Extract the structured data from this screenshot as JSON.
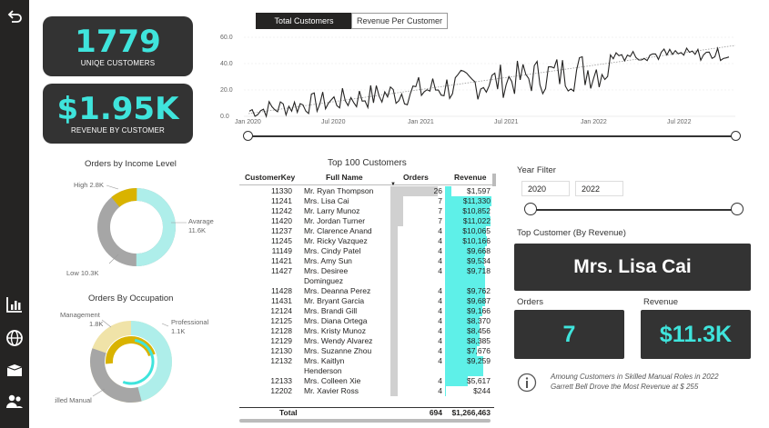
{
  "sidebar": {
    "icons": [
      "back-arrow-icon",
      "bar-chart-icon",
      "globe-icon",
      "box-icon",
      "people-icon"
    ]
  },
  "kpi_customers": {
    "value": "1779",
    "label": "UNIQE CUSTOMERS"
  },
  "kpi_revenue": {
    "value": "$1.95K",
    "label": "REVENUE BY CUSTOMER"
  },
  "tabs": {
    "total": "Total Customers",
    "rev": "Revenue Per Customer"
  },
  "line_chart": {
    "y_ticks": [
      "0.0",
      "20.0",
      "40.0",
      "60.0"
    ],
    "x_ticks": [
      "Jan 2020",
      "Jul 2020",
      "Jan 2021",
      "Jul 2021",
      "Jan 2022",
      "Jul 2022"
    ]
  },
  "income_chart": {
    "title": "Orders by Income Level",
    "labels": [
      {
        "name": "High",
        "value": "2.8K"
      },
      {
        "name": "Avarage",
        "value": "11.6K"
      },
      {
        "name": "Low",
        "value": "10.3K"
      }
    ]
  },
  "occupation_chart": {
    "title": "Orders By Occupation",
    "labels": [
      {
        "name": "Management",
        "value": "1.8K"
      },
      {
        "name": "Professional",
        "value": "1.1K"
      },
      {
        "name": "Skilled Manual",
        "value": ""
      }
    ]
  },
  "table": {
    "title": "Top 100 Customers",
    "headers": [
      "CustomerKey",
      "Full Name",
      "Orders",
      "Revenue"
    ],
    "rows": [
      [
        "11330",
        "Mr. Ryan Thompson",
        "26",
        "$1,597"
      ],
      [
        "11241",
        "Mrs. Lisa Cai",
        "7",
        "$11,330"
      ],
      [
        "11242",
        "Mr. Larry Munoz",
        "7",
        "$10,852"
      ],
      [
        "11420",
        "Mr. Jordan Turner",
        "7",
        "$11,022"
      ],
      [
        "11237",
        "Mr. Clarence Anand",
        "4",
        "$10,065"
      ],
      [
        "11245",
        "Mr. Ricky Vazquez",
        "4",
        "$10,166"
      ],
      [
        "11149",
        "Mrs. Cindy Patel",
        "4",
        "$9,668"
      ],
      [
        "11421",
        "Mrs. Amy Sun",
        "4",
        "$9,534"
      ],
      [
        "11427",
        "Mrs. Desiree Dominguez",
        "4",
        "$9,718"
      ],
      [
        "11428",
        "Mrs. Deanna Perez",
        "4",
        "$9,762"
      ],
      [
        "11431",
        "Mr. Bryant Garcia",
        "4",
        "$9,687"
      ],
      [
        "12124",
        "Mrs. Brandi Gill",
        "4",
        "$9,166"
      ],
      [
        "12125",
        "Mrs. Diana Ortega",
        "4",
        "$8,370"
      ],
      [
        "12128",
        "Mrs. Kristy Munoz",
        "4",
        "$8,456"
      ],
      [
        "12129",
        "Mrs. Wendy Alvarez",
        "4",
        "$8,385"
      ],
      [
        "12130",
        "Mrs. Suzanne Zhou",
        "4",
        "$7,676"
      ],
      [
        "12132",
        "Mrs. Kaitlyn Henderson",
        "4",
        "$9,259"
      ],
      [
        "12133",
        "Mrs. Colleen Xie",
        "4",
        "$5,617"
      ],
      [
        "12202",
        "Mr. Xavier Ross",
        "4",
        "$244"
      ]
    ],
    "total": [
      "Total",
      "694",
      "$1,266,463"
    ]
  },
  "year_filter": {
    "label": "Year Filter",
    "from": "2020",
    "to": "2022"
  },
  "top_customer": {
    "label": "Top Customer (By Revenue)",
    "name": "Mrs. Lisa Cai"
  },
  "orders_card": {
    "label": "Orders",
    "value": "7"
  },
  "revenue_card": {
    "label": "Revenue",
    "value": "$11.3K"
  },
  "insight": {
    "line1": "Amoung Customers in Skilled Manual Roles in 2022",
    "line2": "Garrett Bell Drove the Most Revenue at $ 255"
  },
  "colors": {
    "accent": "#3fe4dc",
    "dark": "#333333",
    "gold": "#d9b300",
    "gray": "#a6a6a6"
  }
}
